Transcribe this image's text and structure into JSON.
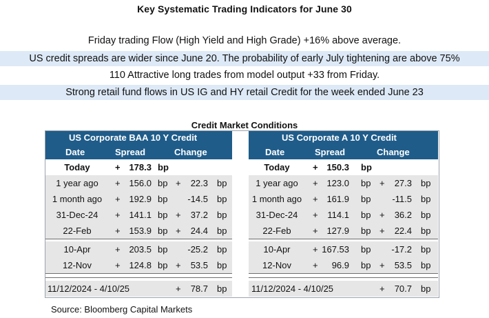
{
  "title": "Key Systematic Trading Indicators for June 30",
  "indicators": [
    "Friday trading Flow (High Yield and High Grade) +16% above average.",
    "US credit spreads are wider since June 20. The probability of early July tightening are above 75%",
    "110 Attractive long trades from model output +33 from Friday.",
    "Strong retail fund flows in US IG and HY retail Credit for the week ended June 23"
  ],
  "section_title": "Credit Market Conditions",
  "colors": {
    "header_bg": "#1f5c8a",
    "shade_bg": "#dde9f6",
    "row_bg": "#e6e6e6"
  },
  "left": {
    "header": "US Corporate BAA 10 Y  Credit",
    "col_date": "Date",
    "col_spread": "Spread",
    "col_change": "Change",
    "rows": [
      {
        "date": "Today",
        "plus": "+",
        "spread": "178.3",
        "unit": "bp",
        "cplus": "",
        "change": "",
        "cunit": ""
      },
      {
        "date": "1 year ago",
        "plus": "+",
        "spread": "156.0",
        "unit": "bp",
        "cplus": "+",
        "change": "22.3",
        "cunit": "bp"
      },
      {
        "date": "1 month ago",
        "plus": "+",
        "spread": "192.9",
        "unit": "bp",
        "cplus": "",
        "change": "-14.5",
        "cunit": "bp"
      },
      {
        "date": "31-Dec-24",
        "plus": "+",
        "spread": "141.1",
        "unit": "bp",
        "cplus": "+",
        "change": "37.2",
        "cunit": "bp"
      },
      {
        "date": "22-Feb",
        "plus": "+",
        "spread": "153.9",
        "unit": "bp",
        "cplus": "+",
        "change": "24.4",
        "cunit": "bp"
      },
      {
        "date": "10-Apr",
        "plus": "+",
        "spread": "203.5",
        "unit": "bp",
        "cplus": "",
        "change": "-25.2",
        "cunit": "bp"
      },
      {
        "date": "12-Nov",
        "plus": "+",
        "spread": "124.8",
        "unit": "bp",
        "cplus": "+",
        "change": "53.5",
        "cunit": "bp"
      },
      {
        "date": "11/12/2024 - 4/10/25",
        "plus": "",
        "spread": "",
        "unit": "",
        "cplus": "+",
        "change": "78.7",
        "cunit": "bp"
      }
    ]
  },
  "right": {
    "header": "US Corporate A 10 Y Credit",
    "col_date": "Date",
    "col_spread": "Spread",
    "col_change": "Change",
    "rows": [
      {
        "date": "Today",
        "plus": "+",
        "spread": "150.3",
        "unit": "bp",
        "cplus": "",
        "change": "",
        "cunit": ""
      },
      {
        "date": "1 year ago",
        "plus": "+",
        "spread": "123.0",
        "unit": "bp",
        "cplus": "+",
        "change": "27.3",
        "cunit": "bp"
      },
      {
        "date": "1 month ago",
        "plus": "+",
        "spread": "161.9",
        "unit": "bp",
        "cplus": "",
        "change": "-11.5",
        "cunit": "bp"
      },
      {
        "date": "31-Dec-24",
        "plus": "+",
        "spread": "114.1",
        "unit": "bp",
        "cplus": "+",
        "change": "36.2",
        "cunit": "bp"
      },
      {
        "date": "22-Feb",
        "plus": "+",
        "spread": "127.9",
        "unit": "bp",
        "cplus": "+",
        "change": "22.4",
        "cunit": "bp"
      },
      {
        "date": "10-Apr",
        "plus": "+",
        "spread": "167.53",
        "unit": "bp",
        "cplus": "",
        "change": "-17.2",
        "cunit": "bp"
      },
      {
        "date": "12-Nov",
        "plus": "+",
        "spread": "96.9",
        "unit": "bp",
        "cplus": "+",
        "change": "53.5",
        "cunit": "bp"
      },
      {
        "date": "11/12/2024 - 4/10/25",
        "plus": "",
        "spread": "",
        "unit": "",
        "cplus": "+",
        "change": "70.7",
        "cunit": "bp"
      }
    ]
  },
  "source": "Source: Bloomberg Capital Markets"
}
